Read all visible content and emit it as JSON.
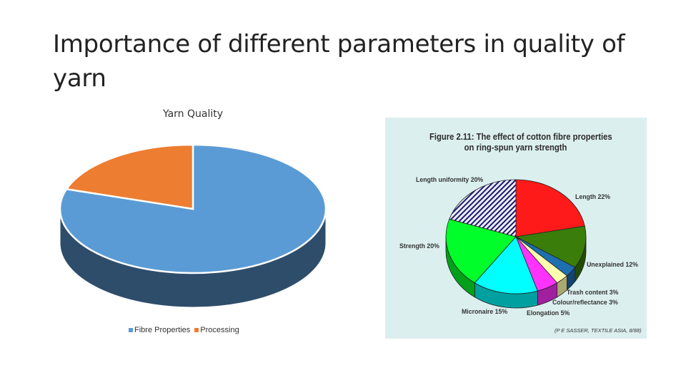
{
  "slide": {
    "title": "Importance of different parameters in quality of yarn"
  },
  "chart_data": [
    {
      "type": "pie",
      "style": "3d",
      "title": "Yarn Quality",
      "categories": [
        "Fibre Properties",
        "Processing"
      ],
      "values": [
        80,
        20
      ],
      "colors": [
        "#5b9bd5",
        "#ed7d31"
      ],
      "side_colors": [
        "#2e4d6b",
        "#8a4a1e"
      ],
      "legend_position": "bottom"
    },
    {
      "type": "pie",
      "style": "3d",
      "title_lines": [
        "Figure 2.11: The effect of cotton fibre properties",
        "on ring-spun yarn strength"
      ],
      "categories": [
        "Length",
        "Unexplained",
        "Trash content",
        "Colour/reflectance",
        "Elongation",
        "Micronaire",
        "Strength",
        "Length uniformity"
      ],
      "labels": [
        "Length  22%",
        "Unexplained  12%",
        "Trash content  3%",
        "Colour/reflectance  3%",
        "Elongation  5%",
        "Micronaire  15%",
        "Strength  20%",
        "Length uniformity  20%"
      ],
      "values": [
        22,
        12,
        3,
        3,
        5,
        15,
        20,
        20
      ],
      "colors": [
        "#ff1a1a",
        "#3a7d0a",
        "#1e6fb0",
        "#ffffb0",
        "#ff33ff",
        "#00ffff",
        "#00ff2a",
        "#e6e6f5"
      ],
      "side_colors": [
        "#b30000",
        "#234d06",
        "#124470",
        "#a8a870",
        "#a020a0",
        "#00a0a0",
        "#00a01a",
        "#9a9ab0"
      ],
      "hatched": [
        false,
        false,
        false,
        false,
        false,
        false,
        false,
        true
      ],
      "credit": "(P E SASSER, TEXTILE ASIA, 8/88)"
    }
  ]
}
